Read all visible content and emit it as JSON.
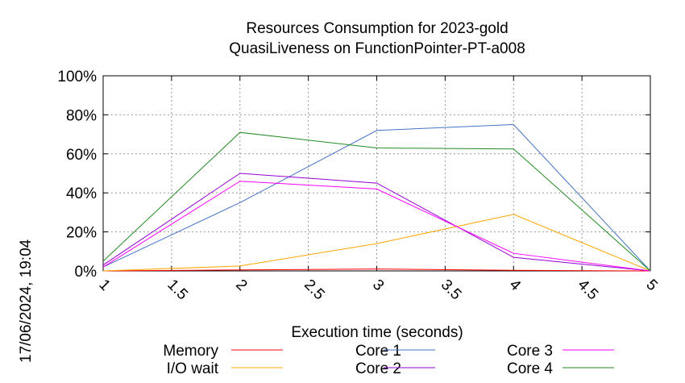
{
  "chart_data": {
    "type": "line",
    "title": [
      "Resources Consumption for 2023-gold",
      "QuasiLiveness on FunctionPointer-PT-a008"
    ],
    "xlabel": "Execution time (seconds)",
    "ylabel": "",
    "xlim": [
      1,
      5
    ],
    "ylim": [
      0,
      100
    ],
    "x_ticks": [
      "1",
      "1.5",
      "2",
      "2.5",
      "3",
      "3.5",
      "4",
      "4.5",
      "5"
    ],
    "y_ticks": [
      "0%",
      "20%",
      "40%",
      "60%",
      "80%",
      "100%"
    ],
    "grid": true,
    "legend_position": "bottom",
    "timestamp": "17/06/2024, 19:04",
    "x": [
      1,
      2,
      3,
      4,
      5
    ],
    "series": [
      {
        "name": "Memory",
        "color": "#ff0000",
        "values": [
          0,
          0.5,
          1,
          0.3,
          0
        ]
      },
      {
        "name": "I/O wait",
        "color": "#ffa500",
        "values": [
          0,
          2.5,
          14,
          29,
          0
        ]
      },
      {
        "name": "Core 1",
        "color": "#4472c4",
        "values": [
          2,
          35,
          72,
          75,
          0
        ]
      },
      {
        "name": "Core 2",
        "color": "#9400d3",
        "values": [
          3,
          50,
          45,
          7,
          0
        ]
      },
      {
        "name": "Core 3",
        "color": "#ff00ff",
        "values": [
          2,
          46,
          42,
          9,
          0
        ]
      },
      {
        "name": "Core 4",
        "color": "#228b22",
        "values": [
          5,
          71,
          63,
          62.5,
          0
        ]
      }
    ]
  }
}
